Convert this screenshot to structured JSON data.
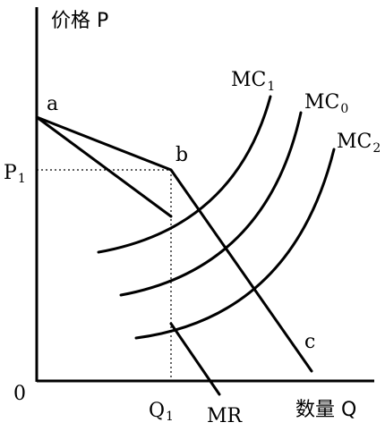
{
  "axes": {
    "y_label": "价格 P",
    "x_label": "数量 Q",
    "origin": "0"
  },
  "ticks": {
    "p": {
      "text": "P",
      "sub": "1"
    },
    "q": {
      "text": "Q",
      "sub": "1"
    }
  },
  "points": {
    "a": "a",
    "b": "b",
    "c": "c"
  },
  "curves": {
    "mc1": {
      "text": "MC",
      "sub": "1"
    },
    "mc0": {
      "text": "MC",
      "sub": "0"
    },
    "mc2": {
      "text": "MC",
      "sub": "2"
    },
    "mr": "MR"
  }
}
